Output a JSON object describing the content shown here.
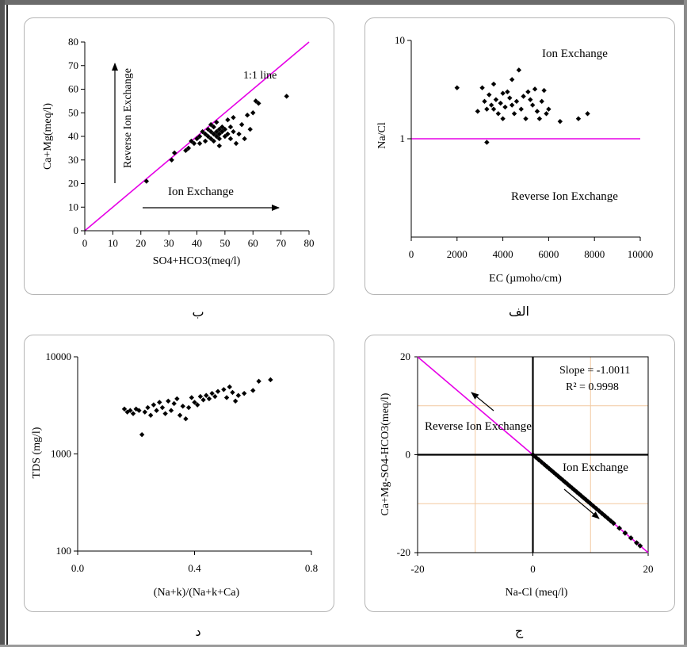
{
  "chart_data": [
    {
      "id": "p1",
      "caption": "ب",
      "type": "scatter",
      "xlabel": "SO4+HCO3(meq/l)",
      "ylabel": "Ca+Mg(meq/l)",
      "xlim": [
        0,
        80
      ],
      "ylim": [
        0,
        80
      ],
      "xticks": [
        0,
        10,
        20,
        30,
        40,
        50,
        60,
        70,
        80
      ],
      "yticks": [
        0,
        10,
        20,
        30,
        40,
        50,
        60,
        70,
        80
      ],
      "reference_line": {
        "label": "1:1 line",
        "points": [
          [
            0,
            0
          ],
          [
            80,
            80
          ]
        ],
        "color": "#e600e6"
      },
      "annotations": [
        "Reverse Ion Exchange",
        "Ion Exchange"
      ],
      "points": [
        [
          22,
          21
        ],
        [
          31,
          30
        ],
        [
          32,
          33
        ],
        [
          36,
          34
        ],
        [
          37,
          35
        ],
        [
          38,
          38
        ],
        [
          39,
          37
        ],
        [
          40,
          39
        ],
        [
          41,
          40
        ],
        [
          41,
          37
        ],
        [
          42,
          42
        ],
        [
          43,
          38
        ],
        [
          43,
          41
        ],
        [
          44,
          43
        ],
        [
          44,
          40
        ],
        [
          45,
          39
        ],
        [
          45,
          42
        ],
        [
          45,
          45
        ],
        [
          46,
          41
        ],
        [
          46,
          44
        ],
        [
          46,
          38
        ],
        [
          47,
          42
        ],
        [
          47,
          40
        ],
        [
          47,
          46
        ],
        [
          48,
          43
        ],
        [
          48,
          41
        ],
        [
          48,
          39
        ],
        [
          48,
          36
        ],
        [
          49,
          42
        ],
        [
          49,
          44
        ],
        [
          50,
          40
        ],
        [
          50,
          43
        ],
        [
          51,
          41
        ],
        [
          51,
          47
        ],
        [
          52,
          39
        ],
        [
          52,
          44
        ],
        [
          53,
          48
        ],
        [
          53,
          42
        ],
        [
          54,
          37
        ],
        [
          55,
          41
        ],
        [
          56,
          45
        ],
        [
          57,
          39
        ],
        [
          58,
          49
        ],
        [
          59,
          43
        ],
        [
          60,
          50
        ],
        [
          61,
          55
        ],
        [
          62,
          54
        ],
        [
          72,
          57
        ]
      ]
    },
    {
      "id": "p2",
      "caption": "الف",
      "type": "scatter",
      "scale": "log-y",
      "xlabel": "EC (µmoho/cm)",
      "ylabel": "Na/Cl",
      "xlim": [
        0,
        10000
      ],
      "ylim": [
        0.1,
        10
      ],
      "xticks": [
        0,
        2000,
        4000,
        6000,
        8000,
        10000
      ],
      "yticks": [
        1,
        10
      ],
      "reference_line": {
        "label": "",
        "points": [
          [
            0,
            1
          ],
          [
            10000,
            1
          ]
        ],
        "color": "#e600e6"
      },
      "annotations": [
        "Ion Exchange",
        "Reverse Ion Exchange"
      ],
      "points": [
        [
          2000,
          3.3
        ],
        [
          2900,
          1.9
        ],
        [
          3100,
          3.3
        ],
        [
          3200,
          2.4
        ],
        [
          3300,
          2.0
        ],
        [
          3300,
          0.92
        ],
        [
          3400,
          2.8
        ],
        [
          3500,
          2.2
        ],
        [
          3600,
          3.6
        ],
        [
          3600,
          2.0
        ],
        [
          3700,
          2.5
        ],
        [
          3800,
          1.8
        ],
        [
          3900,
          2.3
        ],
        [
          4000,
          2.9
        ],
        [
          4000,
          1.6
        ],
        [
          4100,
          2.1
        ],
        [
          4200,
          3.0
        ],
        [
          4300,
          2.6
        ],
        [
          4400,
          2.2
        ],
        [
          4400,
          4.0
        ],
        [
          4500,
          1.8
        ],
        [
          4600,
          2.4
        ],
        [
          4700,
          5.0
        ],
        [
          4800,
          2.0
        ],
        [
          4900,
          2.7
        ],
        [
          5000,
          1.6
        ],
        [
          5100,
          3.0
        ],
        [
          5200,
          2.5
        ],
        [
          5300,
          2.2
        ],
        [
          5400,
          3.2
        ],
        [
          5500,
          1.9
        ],
        [
          5600,
          1.6
        ],
        [
          5700,
          2.4
        ],
        [
          5800,
          3.1
        ],
        [
          5900,
          1.8
        ],
        [
          6000,
          2.0
        ],
        [
          6500,
          1.5
        ],
        [
          7300,
          1.6
        ],
        [
          7700,
          1.8
        ]
      ]
    },
    {
      "id": "p3",
      "caption": "د",
      "type": "scatter",
      "scale": "log-y",
      "xlabel": "(Na+k)/(Na+k+Ca)",
      "ylabel": "TDS (mg/l)",
      "xlim": [
        0,
        0.8
      ],
      "ylim": [
        100,
        10000
      ],
      "xtick_labels": [
        "0.0",
        "0.4",
        "0.8"
      ],
      "xticks": [
        0,
        0.4,
        0.8
      ],
      "yticks": [
        100,
        1000,
        10000
      ],
      "points": [
        [
          0.16,
          2900
        ],
        [
          0.17,
          2700
        ],
        [
          0.18,
          2800
        ],
        [
          0.19,
          2600
        ],
        [
          0.2,
          2900
        ],
        [
          0.21,
          2800
        ],
        [
          0.22,
          1580
        ],
        [
          0.23,
          2700
        ],
        [
          0.24,
          3000
        ],
        [
          0.25,
          2500
        ],
        [
          0.26,
          3200
        ],
        [
          0.27,
          2800
        ],
        [
          0.28,
          3400
        ],
        [
          0.29,
          3000
        ],
        [
          0.3,
          2600
        ],
        [
          0.31,
          3500
        ],
        [
          0.32,
          2800
        ],
        [
          0.33,
          3300
        ],
        [
          0.34,
          3700
        ],
        [
          0.35,
          2500
        ],
        [
          0.36,
          3100
        ],
        [
          0.37,
          2300
        ],
        [
          0.38,
          3000
        ],
        [
          0.39,
          3800
        ],
        [
          0.4,
          3400
        ],
        [
          0.41,
          3200
        ],
        [
          0.42,
          3900
        ],
        [
          0.43,
          3600
        ],
        [
          0.44,
          4000
        ],
        [
          0.45,
          3700
        ],
        [
          0.46,
          4200
        ],
        [
          0.47,
          3900
        ],
        [
          0.48,
          4400
        ],
        [
          0.5,
          4600
        ],
        [
          0.51,
          3800
        ],
        [
          0.52,
          4900
        ],
        [
          0.53,
          4300
        ],
        [
          0.54,
          3500
        ],
        [
          0.55,
          4000
        ],
        [
          0.57,
          4200
        ],
        [
          0.6,
          4500
        ],
        [
          0.62,
          5600
        ],
        [
          0.66,
          5800
        ]
      ]
    },
    {
      "id": "p4",
      "caption": "ج",
      "type": "scatter",
      "xlabel": "Na-Cl (meq/l)",
      "ylabel": "Ca+Mg-SO4-HCO3(meq/l)",
      "xlim": [
        -20,
        20
      ],
      "ylim": [
        -20,
        20
      ],
      "xticks": [
        -20,
        0,
        20
      ],
      "yticks": [
        -20,
        0,
        20
      ],
      "reference_line": {
        "label": "",
        "points": [
          [
            -20,
            20
          ],
          [
            20,
            -20
          ]
        ],
        "color": "#e600e6"
      },
      "stats": {
        "slope": "Slope = -1.0011",
        "r2": "R² = 0.9998"
      },
      "annotations": [
        "Reverse Ion Exchange",
        "Ion Exchange"
      ],
      "points": [
        [
          0,
          0
        ],
        [
          0.5,
          -0.5
        ],
        [
          1,
          -1
        ],
        [
          1.5,
          -1.5
        ],
        [
          2,
          -2
        ],
        [
          2.4,
          -2.4
        ],
        [
          2.8,
          -2.8
        ],
        [
          3.2,
          -3.2
        ],
        [
          3.6,
          -3.6
        ],
        [
          4,
          -4
        ],
        [
          4.4,
          -4.4
        ],
        [
          4.8,
          -4.8
        ],
        [
          5.2,
          -5.2
        ],
        [
          5.6,
          -5.6
        ],
        [
          6,
          -6
        ],
        [
          6.4,
          -6.4
        ],
        [
          6.8,
          -6.8
        ],
        [
          7.2,
          -7.2
        ],
        [
          7.6,
          -7.6
        ],
        [
          8,
          -8
        ],
        [
          8.4,
          -8.4
        ],
        [
          8.8,
          -8.8
        ],
        [
          9.2,
          -9.2
        ],
        [
          9.6,
          -9.6
        ],
        [
          10,
          -10
        ],
        [
          10.5,
          -10.5
        ],
        [
          11,
          -11
        ],
        [
          11.5,
          -11.5
        ],
        [
          12,
          -12
        ],
        [
          12.5,
          -12.5
        ],
        [
          13,
          -13
        ],
        [
          13.5,
          -13.5
        ],
        [
          14,
          -14
        ],
        [
          15,
          -15
        ],
        [
          16,
          -16
        ],
        [
          17,
          -17
        ],
        [
          18,
          -18
        ],
        [
          18.6,
          -18.6
        ]
      ]
    }
  ]
}
